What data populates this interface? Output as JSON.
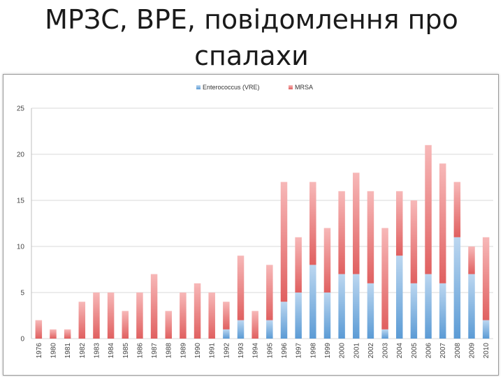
{
  "title_line1": "МРЗС, ВРЕ, повідомлення про",
  "title_line2": "спалахи",
  "colors": {
    "vre": "#5b9bd5",
    "vre_light": "#bcd7f0",
    "mrsa": "#e06060",
    "mrsa_light": "#f7b8b8",
    "grid": "#d9d9d9"
  },
  "chart_data": {
    "type": "bar",
    "stacked": true,
    "categories": [
      "1976",
      "1980",
      "1981",
      "1982",
      "1983",
      "1984",
      "1985",
      "1986",
      "1987",
      "1988",
      "1989",
      "1990",
      "1991",
      "1992",
      "1993",
      "1994",
      "1995",
      "1996",
      "1997",
      "1998",
      "1999",
      "2000",
      "2001",
      "2002",
      "2003",
      "2004",
      "2005",
      "2006",
      "2007",
      "2008",
      "2009",
      "2010"
    ],
    "series": [
      {
        "name": "Enterococcus (VRE)",
        "values": [
          0,
          0,
          0,
          0,
          0,
          0,
          0,
          0,
          0,
          0,
          0,
          0,
          0,
          1,
          2,
          0,
          2,
          4,
          5,
          8,
          5,
          7,
          7,
          6,
          1,
          9,
          6,
          7,
          6,
          11,
          7,
          2
        ]
      },
      {
        "name": "MRSA",
        "values": [
          2,
          1,
          1,
          4,
          5,
          5,
          3,
          5,
          7,
          3,
          5,
          6,
          5,
          3,
          7,
          3,
          6,
          13,
          6,
          9,
          7,
          9,
          11,
          10,
          11,
          7,
          9,
          14,
          13,
          6,
          3,
          9
        ]
      }
    ],
    "ylim": [
      0,
      25
    ],
    "yticks": [
      0,
      5,
      10,
      15,
      20,
      25
    ],
    "grid": true,
    "legend_position": "top-center",
    "xlabel": "",
    "ylabel": ""
  }
}
